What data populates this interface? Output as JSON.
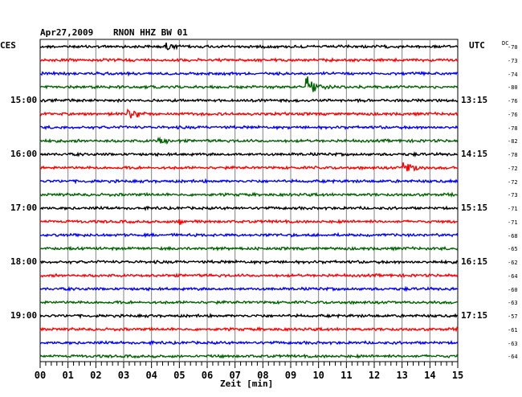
{
  "header": {
    "date": "Apr27,2009",
    "station": "RNON HHZ BW 01",
    "left_zone": "CES",
    "right_zone": "UTC",
    "dc_label": "DC"
  },
  "left_time_labels": [
    {
      "row": 4,
      "text": "15:00"
    },
    {
      "row": 8,
      "text": "16:00"
    },
    {
      "row": 12,
      "text": "17:00"
    },
    {
      "row": 16,
      "text": "18:00"
    },
    {
      "row": 20,
      "text": "19:00"
    }
  ],
  "right_time_labels": [
    {
      "row": 4,
      "text": "13:15"
    },
    {
      "row": 8,
      "text": "14:15"
    },
    {
      "row": 12,
      "text": "15:15"
    },
    {
      "row": 16,
      "text": "16:15"
    },
    {
      "row": 20,
      "text": "17:15"
    }
  ],
  "dc_values": [
    "-70",
    "-73",
    "-74",
    "-80",
    "-76",
    "-76",
    "-78",
    "-82",
    "-78",
    "-72",
    "-72",
    "-73",
    "-71",
    "-71",
    "-68",
    "-65",
    "-62",
    "-64",
    "-60",
    "-63",
    "-57",
    "-61",
    "-63",
    "-64"
  ],
  "trace_colors": [
    "#000000",
    "#ff0000",
    "#0000ff",
    "#006400"
  ],
  "events": [
    {
      "row": 0,
      "minute": 4.6,
      "amp": 1.6
    },
    {
      "row": 3,
      "minute": 9.6,
      "amp": 4.5
    },
    {
      "row": 5,
      "minute": 3.2,
      "amp": 2.6
    },
    {
      "row": 7,
      "minute": 4.3,
      "amp": 1.3
    },
    {
      "row": 9,
      "minute": 13.1,
      "amp": 2.8
    },
    {
      "row": 13,
      "minute": 5.0,
      "amp": 1.2
    }
  ],
  "x_axis": {
    "ticks": [
      "00",
      "01",
      "02",
      "03",
      "04",
      "05",
      "06",
      "07",
      "08",
      "09",
      "10",
      "11",
      "12",
      "13",
      "14",
      "15"
    ],
    "label": "Zeit [min]"
  }
}
